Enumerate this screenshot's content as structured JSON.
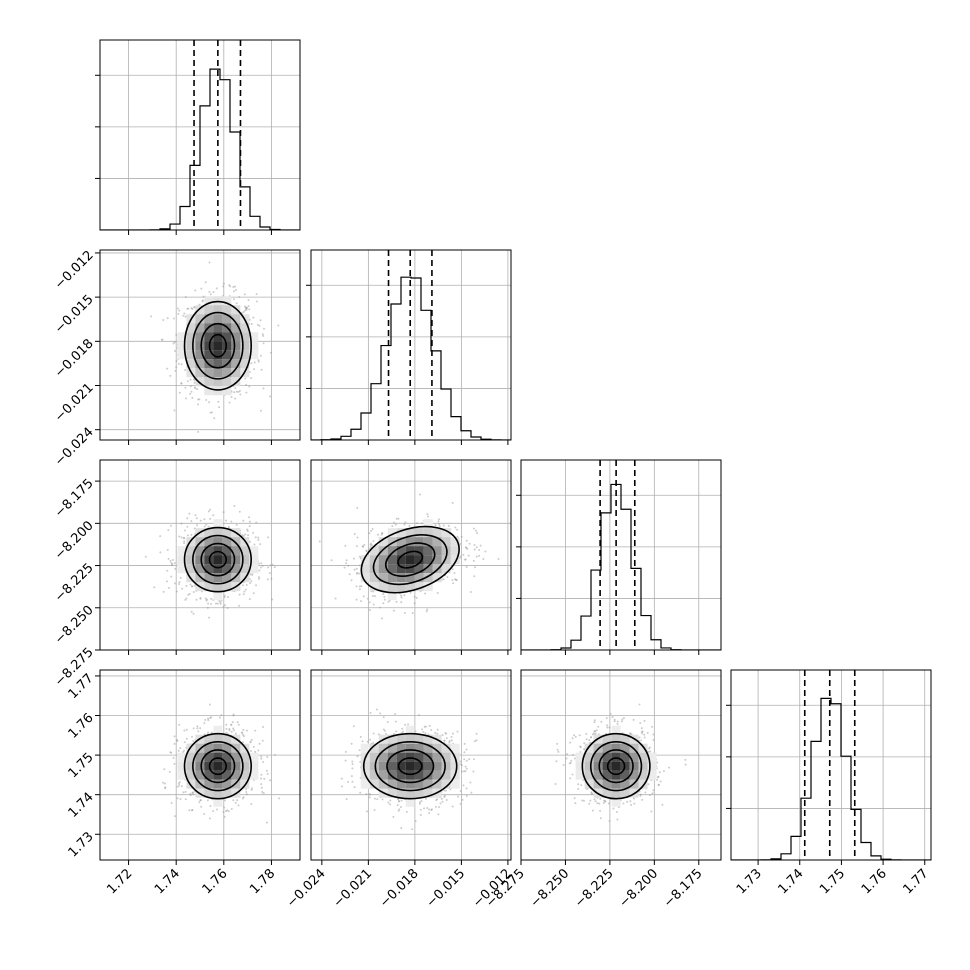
{
  "chart_data": {
    "type": "corner",
    "grid": true,
    "parameters": [
      {
        "range": [
          1.708,
          1.792
        ],
        "ticks": [
          1.72,
          1.74,
          1.76,
          1.78
        ],
        "tick_labels": [
          "1.72",
          "1.74",
          "1.76",
          "1.78"
        ],
        "mean": 1.7575,
        "sigma": 0.007,
        "quantiles": [
          1.7475,
          1.7575,
          1.767
        ]
      },
      {
        "range": [
          -0.0247,
          -0.0118
        ],
        "ticks": [
          -0.024,
          -0.021,
          -0.018,
          -0.015,
          -0.012
        ],
        "tick_labels": [
          "−0.024",
          "−0.021",
          "−0.018",
          "−0.015",
          "−0.012"
        ],
        "mean": -0.0183,
        "sigma": 0.0015,
        "quantiles": [
          -0.0197,
          -0.0183,
          -0.0169
        ]
      },
      {
        "range": [
          -8.275,
          -8.1625
        ],
        "ticks": [
          -8.275,
          -8.25,
          -8.225,
          -8.2,
          -8.175
        ],
        "tick_labels": [
          "−8.275",
          "−8.250",
          "−8.225",
          "−8.200",
          "−8.175"
        ],
        "mean": -8.2215,
        "sigma": 0.0095,
        "quantiles": [
          -8.2305,
          -8.2215,
          -8.211
        ]
      },
      {
        "range": [
          1.7235,
          1.7715
        ],
        "ticks": [
          1.73,
          1.74,
          1.75,
          1.76,
          1.77
        ],
        "tick_labels": [
          "1.73",
          "1.74",
          "1.75",
          "1.76",
          "1.77"
        ],
        "mean": 1.7472,
        "sigma": 0.0041,
        "quantiles": [
          1.7412,
          1.7472,
          1.7532
        ]
      }
    ],
    "correlations": [
      {
        "pair": [
          0,
          1
        ],
        "rho": 0.0
      },
      {
        "pair": [
          0,
          2
        ],
        "rho": 0.0
      },
      {
        "pair": [
          1,
          2
        ],
        "rho": 0.3
      },
      {
        "pair": [
          0,
          3
        ],
        "rho": 0.0
      },
      {
        "pair": [
          1,
          3
        ],
        "rho": 0.0
      },
      {
        "pair": [
          2,
          3
        ],
        "rho": 0.0
      }
    ],
    "contour_levels_sigma": [
      0.5,
      1.0,
      1.5,
      2.0
    ],
    "histogram_bins": 20
  }
}
